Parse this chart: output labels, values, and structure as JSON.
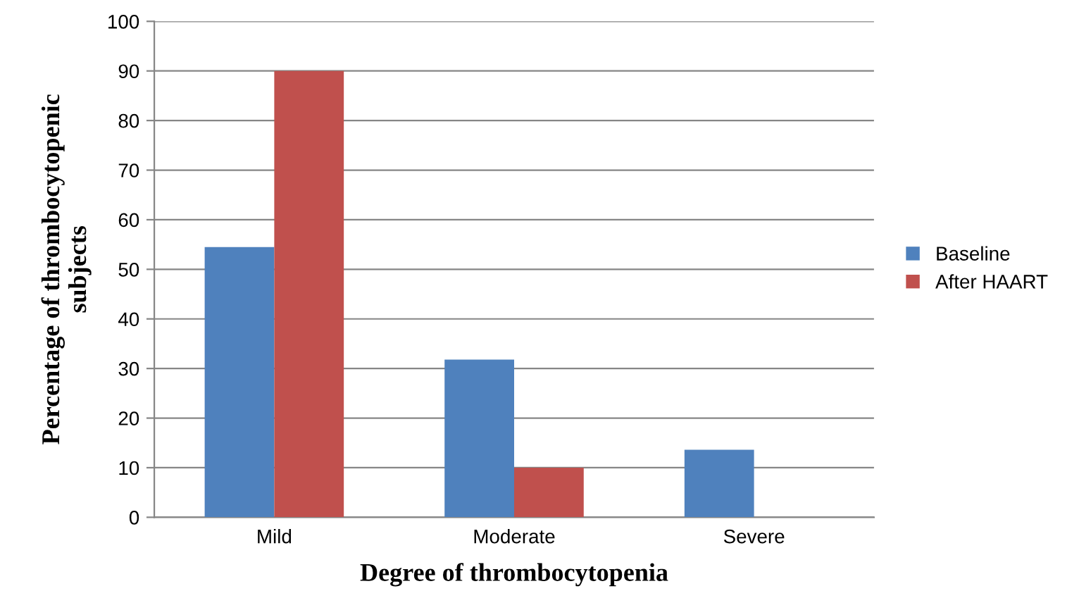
{
  "chart_data": {
    "type": "bar",
    "xlabel": "Degree of thrombocytopenia",
    "ylabel": "Percentage of thrombocytopenic\nsubjects",
    "categories": [
      "Mild",
      "Moderate",
      "Severe"
    ],
    "series": [
      {
        "name": "Baseline",
        "color": "#4f81bd",
        "values": [
          54.5,
          31.8,
          13.6
        ]
      },
      {
        "name": "After HAART",
        "color": "#c0504d",
        "values": [
          90,
          10,
          0
        ]
      }
    ],
    "ylim": [
      0,
      100
    ],
    "yticks": [
      0,
      10,
      20,
      30,
      40,
      50,
      60,
      70,
      80,
      90,
      100
    ],
    "grid": "y",
    "legend": "right"
  }
}
